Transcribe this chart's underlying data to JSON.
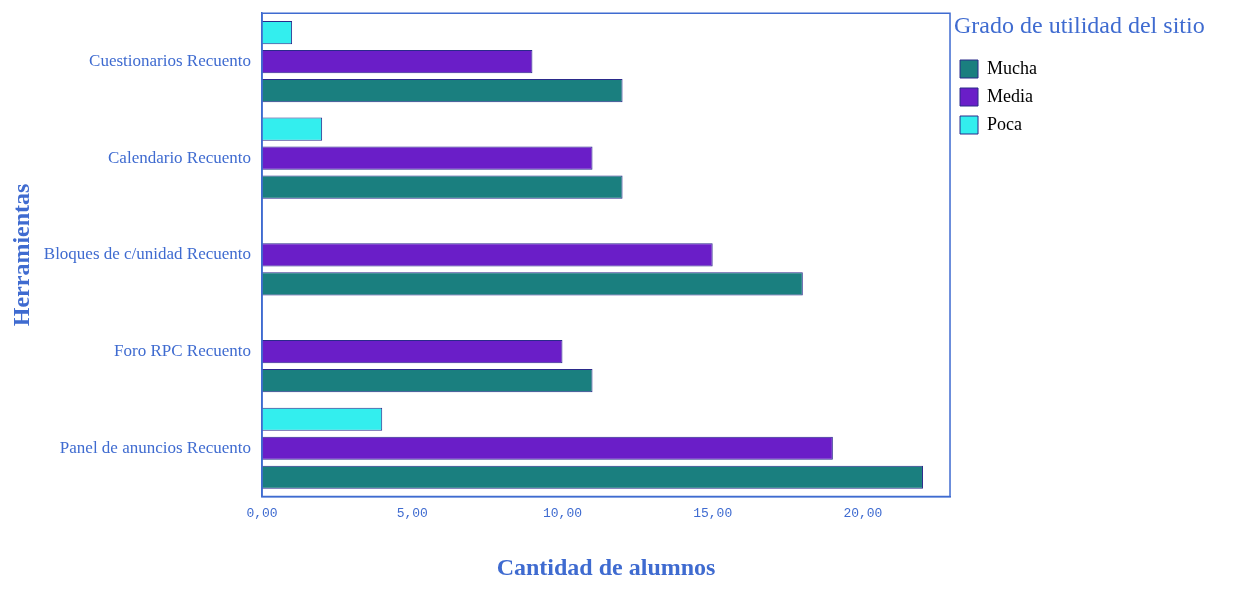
{
  "chart_data": {
    "type": "bar",
    "orientation": "horizontal",
    "xlabel": "Cantidad de alumnos",
    "ylabel": "Herramientas",
    "legend_title": "Grado de utilidad del sitio",
    "legend": "right",
    "grid": false,
    "categories": [
      "Cuestionarios Recuento",
      "Calendario Recuento",
      "Bloques de c/unidad Recuento",
      "Foro RPC Recuento",
      "Panel de anuncios Recuento"
    ],
    "series": [
      {
        "name": "Mucha",
        "color": "#1a7f7f",
        "values": [
          12,
          12,
          18,
          11,
          22
        ]
      },
      {
        "name": "Media",
        "color": "#6a1ec8",
        "values": [
          9,
          11,
          15,
          10,
          19
        ]
      },
      {
        "name": "Poca",
        "color": "#33eeee",
        "values": [
          1,
          2,
          null,
          null,
          4
        ]
      }
    ],
    "xlim": [
      0,
      22.9
    ],
    "xticks": [
      {
        "value": 0,
        "label": "0,00"
      },
      {
        "value": 5,
        "label": "5,00"
      },
      {
        "value": 10,
        "label": "10,00"
      },
      {
        "value": 15,
        "label": "15,00"
      },
      {
        "value": 20,
        "label": "20,00"
      }
    ]
  }
}
